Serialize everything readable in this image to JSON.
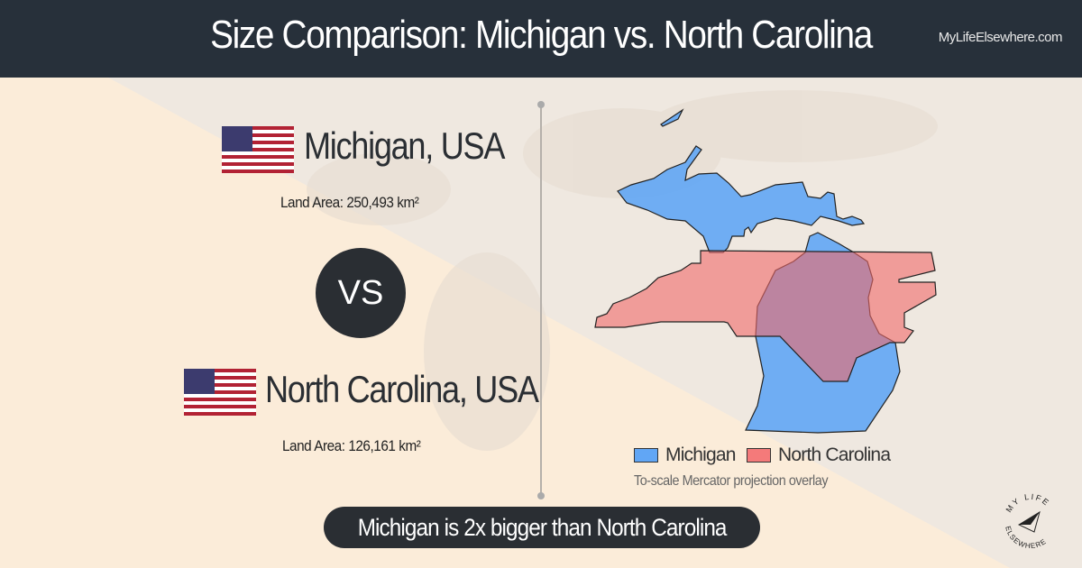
{
  "header": {
    "title": "Size Comparison: Michigan vs. North Carolina",
    "site": "MyLifeElsewhere.com"
  },
  "place1": {
    "name": "Michigan, USA",
    "area": "Land Area: 250,493 km²",
    "flag": "us-flag-icon"
  },
  "vs": "VS",
  "place2": {
    "name": "North Carolina, USA",
    "area": "Land Area: 126,161 km²",
    "flag": "us-flag-icon"
  },
  "legend": [
    {
      "label": "Michigan",
      "color": "#61a6f5"
    },
    {
      "label": "North Carolina",
      "color": "#f47a7a"
    }
  ],
  "note": "To-scale Mercator projection overlay",
  "result": "Michigan is 2x bigger than North Carolina",
  "logo": {
    "text": "MY LIFE ELSEWHERE"
  },
  "colors": {
    "header": "#27303a",
    "michigan": "#61a6f5",
    "north_carolina": "#f47a7a"
  }
}
